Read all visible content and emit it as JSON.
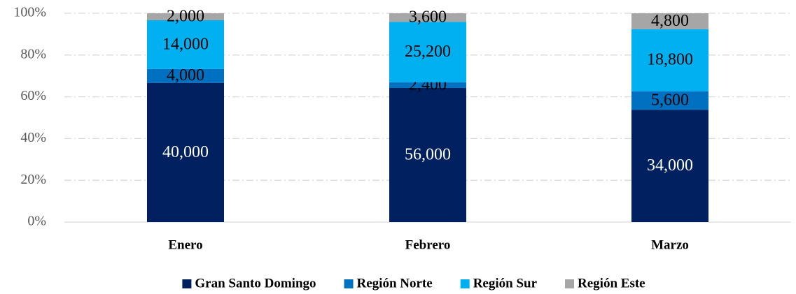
{
  "chart_data": {
    "type": "bar",
    "stacked": "percent",
    "categories": [
      "Enero",
      "Febrero",
      "Marzo"
    ],
    "series": [
      {
        "name": "Gran Santo Domingo",
        "color": "#002060",
        "values": [
          40000,
          56000,
          34000
        ],
        "value_labels": [
          "40,000",
          "56,000",
          "34,000"
        ]
      },
      {
        "name": "Región Norte",
        "color": "#0070c0",
        "values": [
          4000,
          2400,
          5600
        ],
        "value_labels": [
          "4,000",
          "2,400",
          "5,600"
        ]
      },
      {
        "name": "Región Sur",
        "color": "#00b0f0",
        "values": [
          14000,
          25200,
          18800
        ],
        "value_labels": [
          "14,000",
          "25,200",
          "18,800"
        ]
      },
      {
        "name": "Región Este",
        "color": "#a6a6a6",
        "values": [
          2000,
          3600,
          4800
        ],
        "value_labels": [
          "2,000",
          "3,600",
          "4,800"
        ]
      }
    ],
    "ylim": [
      0,
      100
    ],
    "yticks": [
      {
        "value": 0,
        "label": "0%"
      },
      {
        "value": 20,
        "label": "20%"
      },
      {
        "value": 40,
        "label": "40%"
      },
      {
        "value": 60,
        "label": "60%"
      },
      {
        "value": 80,
        "label": "80%"
      },
      {
        "value": 100,
        "label": "100%"
      }
    ],
    "grid": true,
    "legend": "bottom"
  }
}
